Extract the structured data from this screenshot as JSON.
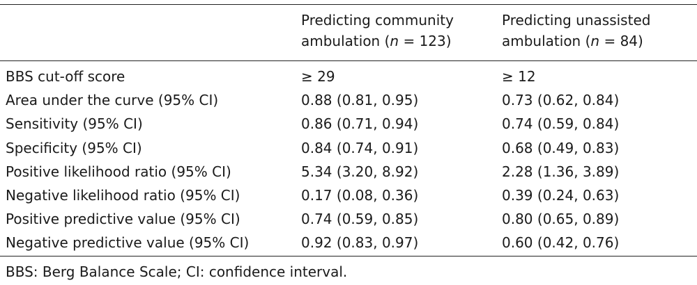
{
  "header": {
    "col1": {
      "line1": "Predicting community",
      "line2_prefix": "ambulation (",
      "n_var": "n",
      "line2_suffix": " = 123)"
    },
    "col2": {
      "line1": "Predicting unassisted",
      "line2_prefix": "ambulation (",
      "n_var": "n",
      "line2_suffix": " = 84)"
    }
  },
  "rows": [
    {
      "label": "BBS cut-off score",
      "community": "≥ 29",
      "unassisted": "≥ 12"
    },
    {
      "label": "Area under the curve (95% CI)",
      "community": "0.88 (0.81, 0.95)",
      "unassisted": "0.73 (0.62, 0.84)"
    },
    {
      "label": "Sensitivity (95% CI)",
      "community": "0.86 (0.71, 0.94)",
      "unassisted": "0.74 (0.59, 0.84)"
    },
    {
      "label": "Specificity (95% CI)",
      "community": "0.84 (0.74, 0.91)",
      "unassisted": "0.68 (0.49, 0.83)"
    },
    {
      "label": "Positive likelihood ratio (95% CI)",
      "community": "5.34 (3.20, 8.92)",
      "unassisted": "2.28 (1.36, 3.89)"
    },
    {
      "label": "Negative likelihood ratio (95% CI)",
      "community": "0.17 (0.08, 0.36)",
      "unassisted": "0.39 (0.24, 0.63)"
    },
    {
      "label": "Positive predictive value (95% CI)",
      "community": "0.74 (0.59, 0.85)",
      "unassisted": "0.80 (0.65, 0.89)"
    },
    {
      "label": "Negative predictive value (95% CI)",
      "community": "0.92 (0.83, 0.97)",
      "unassisted": "0.60 (0.42, 0.76)"
    }
  ],
  "footnote": "BBS: Berg Balance Scale; CI: confidence interval."
}
